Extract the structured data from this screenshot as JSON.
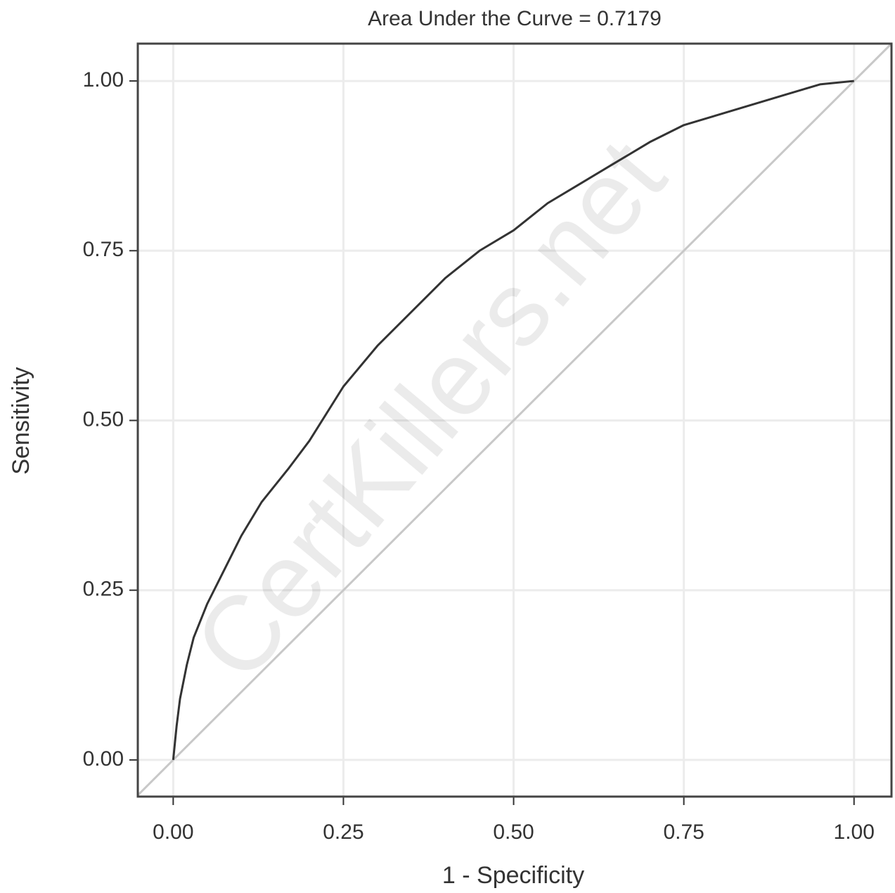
{
  "chart_data": {
    "type": "line",
    "title": "Area Under the Curve = 0.7179",
    "x_label": "1 - Specificity",
    "y_label": "Sensitivity",
    "watermark": "CertKillers.net",
    "x": [
      0,
      0.005,
      0.01,
      0.02,
      0.03,
      0.05,
      0.07,
      0.1,
      0.13,
      0.17,
      0.2,
      0.25,
      0.3,
      0.35,
      0.4,
      0.45,
      0.5,
      0.55,
      0.6,
      0.65,
      0.7,
      0.75,
      0.8,
      0.85,
      0.9,
      0.95,
      1
    ],
    "values": [
      0,
      0.05,
      0.09,
      0.14,
      0.18,
      0.23,
      0.27,
      0.33,
      0.38,
      0.43,
      0.47,
      0.55,
      0.61,
      0.66,
      0.71,
      0.75,
      0.78,
      0.82,
      0.85,
      0.88,
      0.91,
      0.935,
      0.95,
      0.965,
      0.98,
      0.995,
      1
    ],
    "color": "#333333",
    "reference_color": "#c8c8c8",
    "xlim": [
      -0.052,
      1.055
    ],
    "ylim": [
      -0.054,
      1.055
    ],
    "xticks": [
      {
        "value": 0,
        "label": "0.00"
      },
      {
        "value": 0.25,
        "label": "0.25"
      },
      {
        "value": 0.5,
        "label": "0.50"
      },
      {
        "value": 0.75,
        "label": "0.75"
      },
      {
        "value": 1,
        "label": "1.00"
      }
    ],
    "yticks": [
      {
        "value": 0,
        "label": "0.00"
      },
      {
        "value": 0.25,
        "label": "0.25"
      },
      {
        "value": 0.5,
        "label": "0.50"
      },
      {
        "value": 0.75,
        "label": "0.75"
      },
      {
        "value": 1,
        "label": "1.00"
      }
    ],
    "grid": true
  }
}
